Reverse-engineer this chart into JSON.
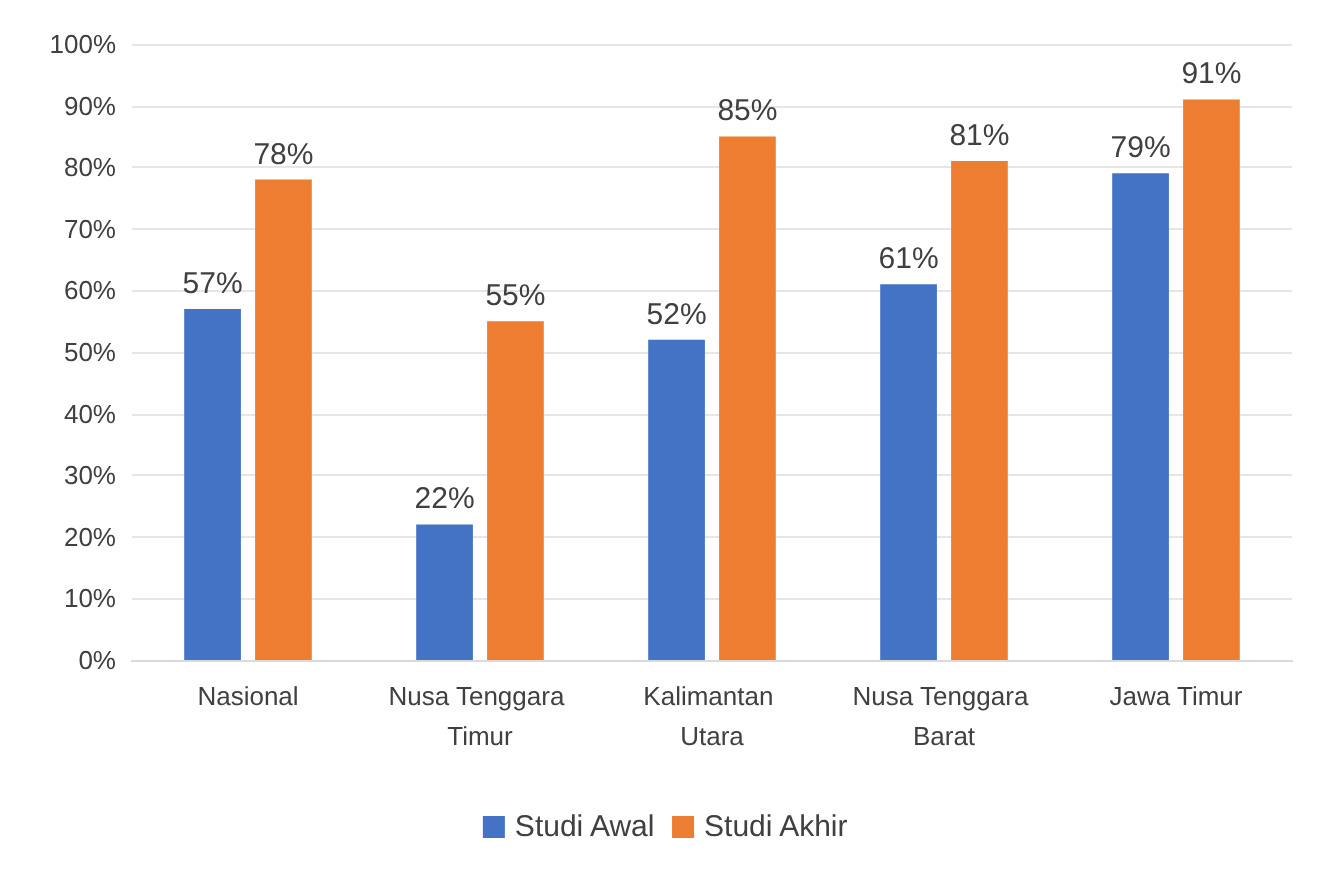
{
  "chart_data": {
    "type": "bar",
    "categories": [
      "Nasional",
      "Nusa Tenggara Timur",
      "Kalimantan Utara",
      "Nusa Tenggara Barat",
      "Jawa Timur"
    ],
    "series": [
      {
        "name": "Studi Awal",
        "color": "#4472c4",
        "values": [
          57,
          22,
          52,
          61,
          79
        ],
        "value_labels": [
          "57%",
          "22%",
          "52%",
          "61%",
          "79%"
        ]
      },
      {
        "name": "Studi Akhir",
        "color": "#ed7d31",
        "values": [
          78,
          55,
          85,
          81,
          91
        ],
        "value_labels": [
          "78%",
          "55%",
          "85%",
          "81%",
          "91%"
        ]
      }
    ],
    "ylim": [
      0,
      100
    ],
    "yticks": [
      {
        "value": 0,
        "label": "0%"
      },
      {
        "value": 10,
        "label": "10%"
      },
      {
        "value": 20,
        "label": "20%"
      },
      {
        "value": 30,
        "label": "30%"
      },
      {
        "value": 40,
        "label": "40%"
      },
      {
        "value": 50,
        "label": "50%"
      },
      {
        "value": 60,
        "label": "60%"
      },
      {
        "value": 70,
        "label": "70%"
      },
      {
        "value": 80,
        "label": "80%"
      },
      {
        "value": 90,
        "label": "90%"
      },
      {
        "value": 100,
        "label": "100%"
      }
    ],
    "grid": "y",
    "legend": "bottom"
  }
}
